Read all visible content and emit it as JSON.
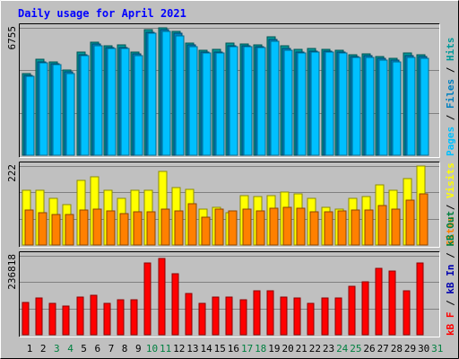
{
  "chart_data": {
    "type": "bar",
    "title": "Daily usage for April 2021",
    "colors": {
      "background": "#c0c0c0",
      "hits": "#009999",
      "files": "#0080c0",
      "pages": "#00c0ff",
      "visits": "#ffff00",
      "sites": "#ff8000",
      "kbin": "#0000b0",
      "kbout": "#008040",
      "kbf": "#ff0000",
      "title": "#0000ff",
      "weekend_label": "#008040",
      "weekday_label": "#000000"
    },
    "categories": [
      "1",
      "2",
      "3",
      "4",
      "5",
      "6",
      "7",
      "8",
      "9",
      "10",
      "11",
      "12",
      "13",
      "14",
      "15",
      "16",
      "17",
      "18",
      "19",
      "20",
      "21",
      "22",
      "23",
      "24",
      "25",
      "26",
      "27",
      "28",
      "29",
      "30",
      "31"
    ],
    "weekend_days": [
      "3",
      "4",
      "10",
      "11",
      "17",
      "18",
      "24",
      "25",
      "31"
    ],
    "panels": [
      {
        "name": "hits-files-pages",
        "ymax_label": "6755",
        "ymax": 6755,
        "legend": [
          {
            "text": "Pages",
            "color": "#00c0ff"
          },
          {
            "text": " / ",
            "color": "#000000"
          },
          {
            "text": "Files",
            "color": "#0080c0"
          },
          {
            "text": " / ",
            "color": "#000000"
          },
          {
            "text": "Hits",
            "color": "#009999"
          }
        ],
        "series": [
          {
            "name": "Hits",
            "values": [
              4310,
              5090,
              4940,
              4530,
              5470,
              5990,
              5820,
              5830,
              5480,
              6660,
              6750,
              6560,
              5950,
              5580,
              5590,
              5930,
              5920,
              5870,
              6260,
              5780,
              5600,
              5640,
              5620,
              5570,
              5340,
              5390,
              5250,
              5160,
              5400,
              5350
            ]
          },
          {
            "name": "Files",
            "values": [
              4240,
              4960,
              4840,
              4410,
              5350,
              5880,
              5710,
              5710,
              5370,
              6540,
              6640,
              6450,
              5840,
              5470,
              5490,
              5810,
              5810,
              5760,
              6140,
              5660,
              5490,
              5530,
              5510,
              5460,
              5230,
              5280,
              5140,
              5050,
              5290,
              5240
            ]
          },
          {
            "name": "Pages",
            "values": [
              4200,
              4900,
              4800,
              4350,
              5300,
              5800,
              5650,
              5650,
              5300,
              6450,
              6550,
              6350,
              5750,
              5400,
              5400,
              5750,
              5750,
              5700,
              6050,
              5550,
              5400,
              5450,
              5450,
              5400,
              5200,
              5200,
              5050,
              4950,
              5200,
              5150
            ]
          }
        ]
      },
      {
        "name": "visits-sites",
        "ymax_label": "222",
        "ymax": 222,
        "legend": [
          {
            "text": "Sites",
            "color": "#ff8000"
          },
          {
            "text": " / ",
            "color": "#000000"
          },
          {
            "text": "Visits",
            "color": "#ffff00"
          }
        ],
        "series": [
          {
            "name": "Visits",
            "values": [
              153,
              153,
              130,
              113,
              181,
              191,
              153,
              130,
              153,
              153,
              207,
              162,
              156,
              101,
              106,
              92,
              139,
              137,
              139,
              149,
              143,
              130,
              106,
              101,
              132,
              137,
              170,
              153,
              186,
              222
            ]
          },
          {
            "name": "Sites",
            "values": [
              98,
              92,
              87,
              85,
              98,
              101,
              96,
              89,
              94,
              94,
              101,
              96,
              116,
              79,
              101,
              96,
              101,
              96,
              104,
              106,
              104,
              94,
              94,
              96,
              98,
              98,
              111,
              101,
              125,
              144
            ]
          }
        ]
      },
      {
        "name": "kbf-kbin-kbout",
        "ymax_label": "236818",
        "ymax": 236818,
        "legend": [
          {
            "text": "kB F",
            "color": "#ff0000"
          },
          {
            "text": " / ",
            "color": "#000000"
          },
          {
            "text": "kB In",
            "color": "#0000b0"
          },
          {
            "text": " / ",
            "color": "#000000"
          },
          {
            "text": "kB Out",
            "color": "#008040"
          }
        ],
        "series": [
          {
            "name": "kB F",
            "values": [
              98000,
              109000,
              93000,
              85000,
              112000,
              118000,
              93000,
              104000,
              106000,
              215000,
              229000,
              184000,
              125000,
              93000,
              112000,
              112000,
              104000,
              132000,
              132000,
              112000,
              109000,
              93000,
              109000,
              109000,
              144000,
              159000,
              200000,
              191000,
              132000,
              215000
            ]
          }
        ]
      }
    ]
  }
}
